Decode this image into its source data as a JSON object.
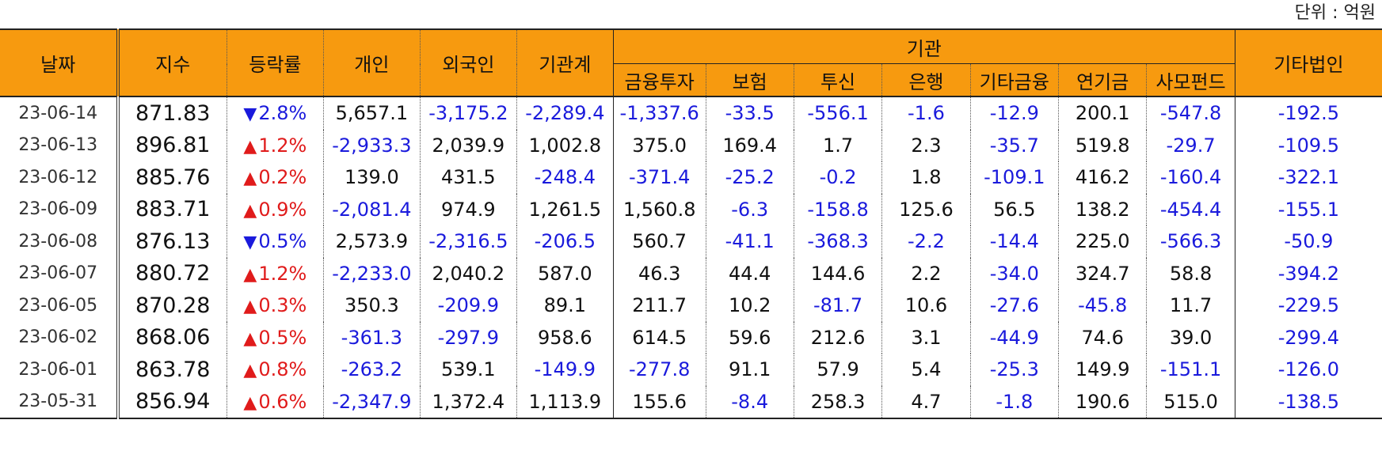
{
  "unit_label": "단위 : 억원",
  "headers": {
    "date": "날짜",
    "index": "지수",
    "rate": "등락률",
    "individual": "개인",
    "foreign": "외국인",
    "inst_total": "기관계",
    "institution": "기관",
    "inst_sub": [
      "금융투자",
      "보험",
      "투신",
      "은행",
      "기타금융",
      "연기금",
      "사모펀드"
    ],
    "other_corp": "기타법인"
  },
  "colors": {
    "header_bg": "#f79a0f",
    "negative": "#1a1adc",
    "up": "#e01b1b",
    "down": "#1a1adc"
  },
  "rows": [
    {
      "date": "23-06-14",
      "index": "871.83",
      "dir": "down",
      "rate": "2.8%",
      "vals": [
        "5,657.1",
        "-3,175.2",
        "-2,289.4",
        "-1,337.6",
        "-33.5",
        "-556.1",
        "-1.6",
        "-12.9",
        "200.1",
        "-547.8",
        "-192.5"
      ]
    },
    {
      "date": "23-06-13",
      "index": "896.81",
      "dir": "up",
      "rate": "1.2%",
      "vals": [
        "-2,933.3",
        "2,039.9",
        "1,002.8",
        "375.0",
        "169.4",
        "1.7",
        "2.3",
        "-35.7",
        "519.8",
        "-29.7",
        "-109.5"
      ]
    },
    {
      "date": "23-06-12",
      "index": "885.76",
      "dir": "up",
      "rate": "0.2%",
      "vals": [
        "139.0",
        "431.5",
        "-248.4",
        "-371.4",
        "-25.2",
        "-0.2",
        "1.8",
        "-109.1",
        "416.2",
        "-160.4",
        "-322.1"
      ]
    },
    {
      "date": "23-06-09",
      "index": "883.71",
      "dir": "up",
      "rate": "0.9%",
      "vals": [
        "-2,081.4",
        "974.9",
        "1,261.5",
        "1,560.8",
        "-6.3",
        "-158.8",
        "125.6",
        "56.5",
        "138.2",
        "-454.4",
        "-155.1"
      ]
    },
    {
      "date": "23-06-08",
      "index": "876.13",
      "dir": "down",
      "rate": "0.5%",
      "vals": [
        "2,573.9",
        "-2,316.5",
        "-206.5",
        "560.7",
        "-41.1",
        "-368.3",
        "-2.2",
        "-14.4",
        "225.0",
        "-566.3",
        "-50.9"
      ]
    },
    {
      "date": "23-06-07",
      "index": "880.72",
      "dir": "up",
      "rate": "1.2%",
      "vals": [
        "-2,233.0",
        "2,040.2",
        "587.0",
        "46.3",
        "44.4",
        "144.6",
        "2.2",
        "-34.0",
        "324.7",
        "58.8",
        "-394.2"
      ]
    },
    {
      "date": "23-06-05",
      "index": "870.28",
      "dir": "up",
      "rate": "0.3%",
      "vals": [
        "350.3",
        "-209.9",
        "89.1",
        "211.7",
        "10.2",
        "-81.7",
        "10.6",
        "-27.6",
        "-45.8",
        "11.7",
        "-229.5"
      ]
    },
    {
      "date": "23-06-02",
      "index": "868.06",
      "dir": "up",
      "rate": "0.5%",
      "vals": [
        "-361.3",
        "-297.9",
        "958.6",
        "614.5",
        "59.6",
        "212.6",
        "3.1",
        "-44.9",
        "74.6",
        "39.0",
        "-299.4"
      ]
    },
    {
      "date": "23-06-01",
      "index": "863.78",
      "dir": "up",
      "rate": "0.8%",
      "vals": [
        "-263.2",
        "539.1",
        "-149.9",
        "-277.8",
        "91.1",
        "57.9",
        "5.4",
        "-25.3",
        "149.9",
        "-151.1",
        "-126.0"
      ]
    },
    {
      "date": "23-05-31",
      "index": "856.94",
      "dir": "up",
      "rate": "0.6%",
      "vals": [
        "-2,347.9",
        "1,372.4",
        "1,113.9",
        "155.6",
        "-8.4",
        "258.3",
        "4.7",
        "-1.8",
        "190.6",
        "515.0",
        "-138.5"
      ]
    }
  ],
  "arrows": {
    "up": "▲",
    "down": "▼"
  }
}
